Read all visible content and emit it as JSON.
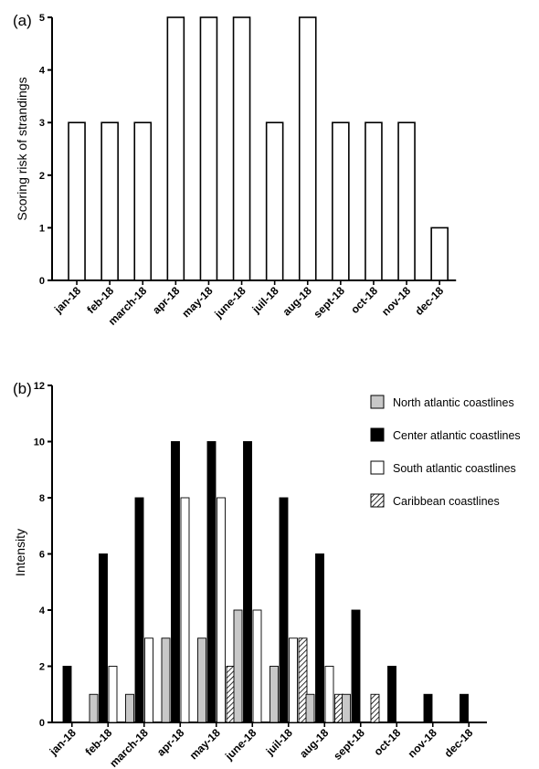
{
  "chart_data": [
    {
      "panel_label": "(a)",
      "type": "bar",
      "ylabel": "Scoring risk of strandings",
      "ylim": [
        0,
        5
      ],
      "yticks": [
        0,
        1,
        2,
        3,
        4,
        5
      ],
      "categories": [
        "jan-18",
        "feb-18",
        "march-18",
        "apr-18",
        "may-18",
        "june-18",
        "juil-18",
        "aug-18",
        "sept-18",
        "oct-18",
        "nov-18",
        "dec-18"
      ],
      "values": [
        3,
        3,
        3,
        5,
        5,
        5,
        3,
        5,
        3,
        3,
        3,
        1
      ],
      "grid": false,
      "colors": {
        "bar_fill": "#ffffff",
        "bar_stroke": "#000000"
      }
    },
    {
      "panel_label": "(b)",
      "type": "bar",
      "ylabel": "Intensity",
      "ylim": [
        0,
        12
      ],
      "yticks": [
        0,
        2,
        4,
        6,
        8,
        10,
        12
      ],
      "categories": [
        "jan-18",
        "feb-18",
        "march-18",
        "apr-18",
        "may-18",
        "june-18",
        "juil-18",
        "aug-18",
        "sept-18",
        "oct-18",
        "nov-18",
        "dec-18"
      ],
      "legend_position": "top-right",
      "grid": false,
      "series": [
        {
          "name": "North atlantic coastlines",
          "fill": "#c8c8c8",
          "pattern": "solid",
          "values": [
            0,
            1,
            1,
            3,
            3,
            4,
            2,
            1,
            1,
            0,
            0,
            0
          ]
        },
        {
          "name": "Center atlantic coastlines",
          "fill": "#000000",
          "pattern": "solid",
          "values": [
            2,
            6,
            8,
            10,
            10,
            10,
            8,
            6,
            4,
            2,
            1,
            1
          ]
        },
        {
          "name": "South atlantic coastlines",
          "fill": "#ffffff",
          "pattern": "solid",
          "values": [
            0,
            2,
            3,
            8,
            8,
            4,
            3,
            2,
            0,
            0,
            0,
            0
          ]
        },
        {
          "name": "Caribbean coastlines",
          "fill": "#ffffff",
          "pattern": "hatch",
          "values": [
            0,
            0,
            0,
            0,
            2,
            0,
            3,
            1,
            1,
            0,
            0,
            0
          ]
        }
      ]
    }
  ]
}
